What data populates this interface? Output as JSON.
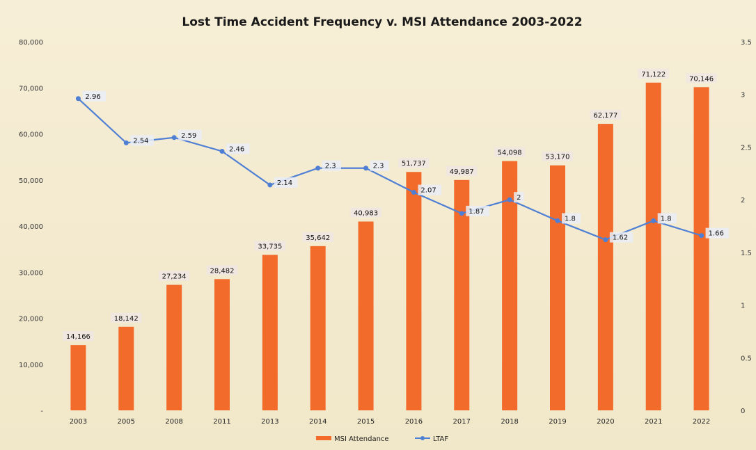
{
  "chart_data": {
    "type": "bar",
    "title": "Lost Time Accident Frequency v. MSI Attendance 2003-2022",
    "categories": [
      "2003",
      "2005",
      "2008",
      "2011",
      "2013",
      "2014",
      "2015",
      "2016",
      "2017",
      "2018",
      "2019",
      "2020",
      "2021",
      "2022"
    ],
    "series": [
      {
        "name": "MSI Attendance",
        "type": "bar",
        "axis": "left",
        "color": "#f26b2a",
        "values": [
          14166,
          18142,
          27234,
          28482,
          33735,
          35642,
          40983,
          51737,
          49987,
          54098,
          53170,
          62177,
          71122,
          70146
        ],
        "labels": [
          "14,166",
          "18,142",
          "27,234",
          "28,482",
          "33,735",
          "35,642",
          "40,983",
          "51,737",
          "49,987",
          "54,098",
          "53,170",
          "62,177",
          "71,122",
          "70,146"
        ]
      },
      {
        "name": "LTAF",
        "type": "line",
        "axis": "right",
        "color": "#4f7fd4",
        "values": [
          2.96,
          2.54,
          2.59,
          2.46,
          2.14,
          2.3,
          2.3,
          2.07,
          1.87,
          2,
          1.8,
          1.62,
          1.8,
          1.66
        ],
        "labels": [
          "2.96",
          "2.54",
          "2.59",
          "2.46",
          "2.14",
          "2.3",
          "2.3",
          "2.07",
          "1.87",
          "2",
          "1.8",
          "1.62",
          "1.8",
          "1.66"
        ]
      }
    ],
    "left_axis": {
      "range": [
        0,
        80000
      ],
      "ticks": [
        0,
        10000,
        20000,
        30000,
        40000,
        50000,
        60000,
        70000,
        80000
      ],
      "tick_labels": [
        "-",
        "10,000",
        "20,000",
        "30,000",
        "40,000",
        "50,000",
        "60,000",
        "70,000",
        "80,000"
      ]
    },
    "right_axis": {
      "range": [
        0,
        3.5
      ],
      "ticks": [
        0,
        0.5,
        1,
        1.5,
        2,
        2.5,
        3,
        3.5
      ],
      "tick_labels": [
        "0",
        "0.5",
        "1",
        "1.5",
        "2",
        "2.5",
        "3",
        "3.5"
      ]
    },
    "legend": {
      "placement": "bottom-center"
    },
    "grid": false
  }
}
